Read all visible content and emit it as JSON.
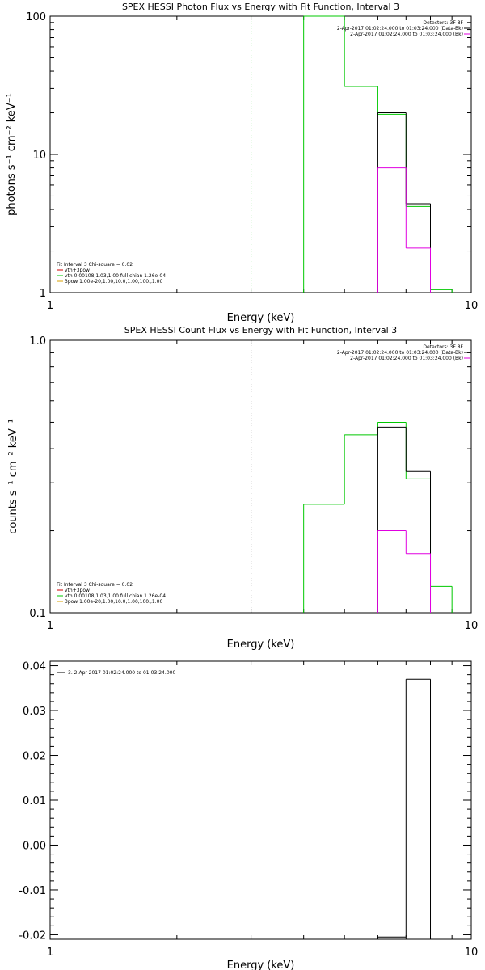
{
  "colors": {
    "black": "#000000",
    "green": "#00c800",
    "magenta": "#e000e0",
    "red": "#d00000",
    "orange": "#d8a000"
  },
  "chart_data": [
    {
      "type": "line",
      "title": "SPEX HESSI Photon Flux vs Energy with Fit Function, Interval 3",
      "xlabel": "Energy (keV)",
      "ylabel": "photons s⁻¹ cm⁻² keV⁻¹",
      "xscale": "log",
      "yscale": "log",
      "xlim": [
        1,
        10
      ],
      "ylim": [
        1,
        100
      ],
      "xticks": [
        {
          "v": 1,
          "label": "1"
        },
        {
          "v": 10,
          "label": "10"
        }
      ],
      "yticks": [
        {
          "v": 1,
          "label": "1"
        },
        {
          "v": 10,
          "label": "10"
        },
        {
          "v": 100,
          "label": "100"
        }
      ],
      "vline": {
        "x": 3.0,
        "style": "dotted",
        "color": "#00c800"
      },
      "legend_top": {
        "header": "Detectors: 3F 8F",
        "items": [
          {
            "text": "2-Apr-2017 01:02:24.000 to 01:03:24.000 (Data-Bk)",
            "color": "#000000"
          },
          {
            "text": "2-Apr-2017 01:02:24.000 to 01:03:24.000 (Bk)",
            "color": "#e000e0"
          }
        ]
      },
      "legend_bottom": {
        "header": "Fit Interval  3    Chi-square = 0.02",
        "items": [
          {
            "text": "vth+3pow",
            "color": "#d00000"
          },
          {
            "text": "vth 0.00108,1.03,1.00  full chian 1.26e-04",
            "color": "#00c800"
          },
          {
            "text": "3pow 1.00e-20,1.00,10.0,1.00,100.,1.00",
            "color": "#d8a000"
          }
        ]
      },
      "series": [
        {
          "color": "#00c800",
          "steps": [
            {
              "x0": 4.0,
              "x1": 5.0,
              "y": 100
            },
            {
              "x0": 5.0,
              "x1": 6.0,
              "y": 31
            },
            {
              "x0": 6.0,
              "x1": 7.0,
              "y": 19.5
            },
            {
              "x0": 7.0,
              "x1": 8.0,
              "y": 4.2
            },
            {
              "x0": 8.0,
              "x1": 9.0,
              "y": 1.05
            }
          ]
        },
        {
          "color": "#000000",
          "steps": [
            {
              "x0": 6.0,
              "x1": 7.0,
              "y": 20
            },
            {
              "x0": 7.0,
              "x1": 8.0,
              "y": 4.4
            }
          ]
        },
        {
          "color": "#e000e0",
          "steps": [
            {
              "x0": 6.0,
              "x1": 7.0,
              "y": 8.0
            },
            {
              "x0": 7.0,
              "x1": 8.0,
              "y": 2.1
            }
          ]
        }
      ]
    },
    {
      "type": "line",
      "title": "SPEX HESSI Count Flux vs Energy with Fit Function, Interval 3",
      "xlabel": "Energy (keV)",
      "ylabel": "counts s⁻¹ cm⁻² keV⁻¹",
      "xscale": "log",
      "yscale": "log",
      "xlim": [
        1,
        10
      ],
      "ylim": [
        0.1,
        1.0
      ],
      "xticks": [
        {
          "v": 1,
          "label": "1"
        },
        {
          "v": 10,
          "label": "10"
        }
      ],
      "yticks": [
        {
          "v": 0.1,
          "label": "0.1"
        },
        {
          "v": 1.0,
          "label": "1.0"
        }
      ],
      "vline": {
        "x": 3.0,
        "style": "dotted",
        "color": "#000000"
      },
      "legend_top": {
        "header": "Detectors: 3F 8F",
        "items": [
          {
            "text": "2-Apr-2017 01:02:24.000 to 01:03:24.000 (Data-Bk)",
            "color": "#000000"
          },
          {
            "text": "2-Apr-2017 01:02:24.000 to 01:03:24.000 (Bk)",
            "color": "#e000e0"
          }
        ]
      },
      "legend_bottom": {
        "header": "Fit Interval  3    Chi-square = 0.02",
        "items": [
          {
            "text": "vth+3pow",
            "color": "#d00000"
          },
          {
            "text": "vth 0.00108,1.03,1.00  full chian 1.26e-04",
            "color": "#00c800"
          },
          {
            "text": "3pow 1.00e-20,1.00,10.0,1.00,100.,1.00",
            "color": "#d8a000"
          }
        ]
      },
      "series": [
        {
          "color": "#00c800",
          "steps": [
            {
              "x0": 4.0,
              "x1": 5.0,
              "y": 0.25
            },
            {
              "x0": 5.0,
              "x1": 6.0,
              "y": 0.45
            },
            {
              "x0": 6.0,
              "x1": 7.0,
              "y": 0.5
            },
            {
              "x0": 7.0,
              "x1": 8.0,
              "y": 0.31
            },
            {
              "x0": 8.0,
              "x1": 9.0,
              "y": 0.125
            }
          ],
          "start_from_bottom": true
        },
        {
          "color": "#000000",
          "steps": [
            {
              "x0": 6.0,
              "x1": 7.0,
              "y": 0.48
            },
            {
              "x0": 7.0,
              "x1": 8.0,
              "y": 0.33
            }
          ]
        },
        {
          "color": "#e000e0",
          "steps": [
            {
              "x0": 6.0,
              "x1": 7.0,
              "y": 0.2
            },
            {
              "x0": 7.0,
              "x1": 8.0,
              "y": 0.165
            }
          ]
        }
      ]
    },
    {
      "type": "bar",
      "title": "",
      "xlabel": "Energy (keV)",
      "ylabel": "",
      "xscale": "log",
      "yscale": "linear",
      "xlim": [
        1,
        10
      ],
      "ylim": [
        -0.021,
        0.041
      ],
      "xticks": [
        {
          "v": 1,
          "label": "1"
        },
        {
          "v": 10,
          "label": "10"
        }
      ],
      "yticks": [
        {
          "v": 0.04,
          "label": "0.04"
        },
        {
          "v": 0.03,
          "label": "0.03"
        },
        {
          "v": 0.02,
          "label": "0.02"
        },
        {
          "v": 0.01,
          "label": "0.01"
        },
        {
          "v": 0.0,
          "label": "0.00"
        },
        {
          "v": -0.01,
          "label": "-0.01"
        },
        {
          "v": -0.02,
          "label": "-0.02"
        }
      ],
      "legend_top": {
        "header": "",
        "items": [
          {
            "text": "3.  2-Apr-2017 01:02:24.000 to 01:03:24.000",
            "color": "#000000"
          }
        ]
      },
      "series": [
        {
          "color": "#000000",
          "steps": [
            {
              "x0": 6.0,
              "x1": 7.0,
              "y": -0.0205
            },
            {
              "x0": 7.0,
              "x1": 8.0,
              "y": 0.037
            }
          ],
          "drop_to_bottom": true
        }
      ]
    }
  ]
}
